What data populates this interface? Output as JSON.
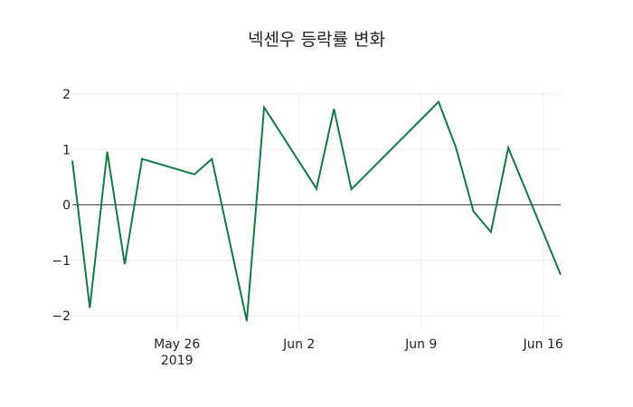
{
  "chart_data": {
    "type": "line",
    "title": "넥센우 등락률 변화",
    "xlabel": "",
    "ylabel": "",
    "x": [
      "2019-05-20",
      "2019-05-21",
      "2019-05-22",
      "2019-05-23",
      "2019-05-24",
      "2019-05-27",
      "2019-05-28",
      "2019-05-30",
      "2019-05-31",
      "2019-06-03",
      "2019-06-04",
      "2019-06-05",
      "2019-06-10",
      "2019-06-11",
      "2019-06-12",
      "2019-06-13",
      "2019-06-14",
      "2019-06-17"
    ],
    "series": [
      {
        "name": "등락률",
        "color": "#127a44",
        "values": [
          0.8,
          -1.86,
          0.96,
          -1.07,
          0.83,
          0.55,
          0.83,
          -2.1,
          1.76,
          0.29,
          1.73,
          0.28,
          1.86,
          1.03,
          -0.12,
          -0.49,
          1.03,
          -1.26
        ]
      }
    ],
    "x_ticks": [
      {
        "label": "May 26",
        "sublabel": "2019",
        "date": "2019-05-26"
      },
      {
        "label": "Jun 2",
        "date": "2019-06-02"
      },
      {
        "label": "Jun 9",
        "date": "2019-06-09"
      },
      {
        "label": "Jun 16",
        "date": "2019-06-16"
      }
    ],
    "y_ticks": [
      2,
      1,
      0,
      -1,
      -2
    ],
    "y_tick_labels": [
      "2",
      "1",
      "0",
      "−1",
      "−2"
    ],
    "ylim": [
      -2.2,
      2.3
    ],
    "xlim": [
      "2019-05-20",
      "2019-06-17"
    ],
    "grid": true,
    "legend": false,
    "zeroline": true
  }
}
